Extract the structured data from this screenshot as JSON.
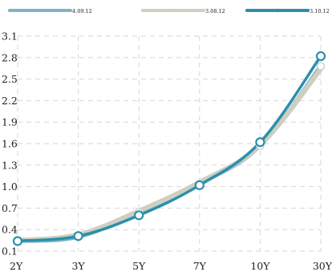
{
  "chart_data": {
    "type": "line",
    "title": "",
    "xlabel": "",
    "ylabel": "",
    "categories": [
      "2Y",
      "3Y",
      "5Y",
      "7Y",
      "10Y",
      "30Y"
    ],
    "ylim": [
      0.1,
      3.1
    ],
    "yticks": [
      "0.1",
      "0.4",
      "0.7",
      "1.0",
      "1.3",
      "1.6",
      "1.9",
      "2.2",
      "2.5",
      "2.8",
      "3.1"
    ],
    "grid": true,
    "legend_position": "top",
    "series": [
      {
        "name": "4.09.12",
        "color": "#7fb3c6",
        "values": [
          0.24,
          0.3,
          0.64,
          1.04,
          1.57,
          2.68
        ],
        "markers": false
      },
      {
        "name": "3.08.12",
        "color": "#cfcfc1",
        "values": [
          0.25,
          0.33,
          0.66,
          1.06,
          1.58,
          2.64
        ],
        "markers": false
      },
      {
        "name": "3.10.12",
        "color": "#2b8fad",
        "values": [
          0.24,
          0.31,
          0.6,
          1.02,
          1.62,
          2.82
        ],
        "markers": true
      }
    ]
  }
}
